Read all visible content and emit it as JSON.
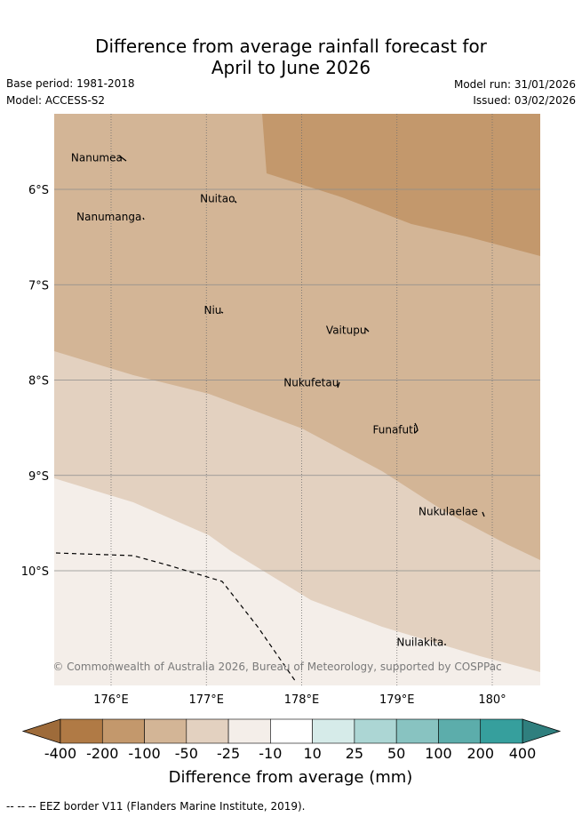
{
  "title": {
    "line1": "Difference from average rainfall forecast for",
    "line2": "April to June 2026"
  },
  "meta": {
    "base_period": "Base period: 1981-2018",
    "model": "Model: ACCESS-S2",
    "model_run": "Model run: 31/01/2026",
    "issued": "Issued: 03/02/2026"
  },
  "map": {
    "lat_ticks": [
      {
        "value": -6,
        "label": "6°S"
      },
      {
        "value": -7,
        "label": "7°S"
      },
      {
        "value": -8,
        "label": "8°S"
      },
      {
        "value": -9,
        "label": "9°S"
      },
      {
        "value": -10,
        "label": "10°S"
      }
    ],
    "lon_ticks": [
      {
        "value": 176,
        "label": "176°E"
      },
      {
        "value": 177,
        "label": "177°E"
      },
      {
        "value": 178,
        "label": "178°E"
      },
      {
        "value": 179,
        "label": "179°E"
      },
      {
        "value": 180,
        "label": "180°"
      }
    ],
    "places": [
      {
        "name": "Nanumea",
        "lon": 176.12,
        "lat": -5.67
      },
      {
        "name": "Nuitao",
        "lon": 177.3,
        "lat": -6.1
      },
      {
        "name": "Nanumanga",
        "lon": 176.32,
        "lat": -6.29
      },
      {
        "name": "Niu",
        "lon": 177.16,
        "lat": -7.27
      },
      {
        "name": "Vaitupu",
        "lon": 178.68,
        "lat": -7.48
      },
      {
        "name": "Nukufetau",
        "lon": 178.39,
        "lat": -8.03
      },
      {
        "name": "Funafuti",
        "lon": 179.2,
        "lat": -8.52
      },
      {
        "name": "Nukulaelae",
        "lon": 179.85,
        "lat": -9.38
      },
      {
        "name": "Nuilakita",
        "lon": 179.49,
        "lat": -10.75
      }
    ],
    "copyright": "© Commonwealth of Australia 2026, Bureau of Meteorology, supported by COSPPac"
  },
  "colorbar": {
    "labels": [
      "-400",
      "-200",
      "-100",
      "-50",
      "-25",
      "-10",
      "10",
      "25",
      "50",
      "100",
      "200",
      "400"
    ],
    "colors": [
      "#b07a45",
      "#c3986c",
      "#d3b596",
      "#e3d1c0",
      "#f4eee9",
      "#ffffff",
      "#d6ebe9",
      "#acd6d4",
      "#88c3c1",
      "#5cadab",
      "#369f9d"
    ],
    "under_color": "#9e6b3a",
    "over_color": "#2f7f7e",
    "title": "Difference from average (mm)"
  },
  "footer": "-- -- -- EEZ border V11 (Flanders Marine Institute, 2019)."
}
